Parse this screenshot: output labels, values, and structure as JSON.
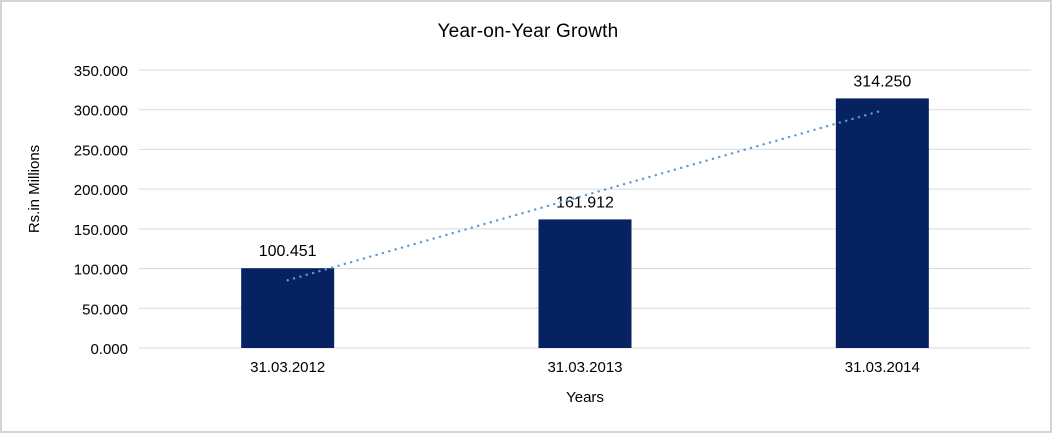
{
  "chart_data": {
    "type": "bar",
    "title": "Year-on-Year Growth",
    "xlabel": "Years",
    "ylabel": "Rs.in Millions",
    "categories": [
      "31.03.2012",
      "31.03.2013",
      "31.03.2014"
    ],
    "values": [
      100.451,
      161.912,
      314.25
    ],
    "value_labels": [
      "100.451",
      "161.912",
      "314.250"
    ],
    "ylim": [
      0,
      350
    ],
    "ytick_values": [
      0,
      50,
      100,
      150,
      200,
      250,
      300,
      350
    ],
    "ytick_labels": [
      "0.000",
      "50.000",
      "100.000",
      "150.000",
      "200.000",
      "250.000",
      "300.000",
      "350.000"
    ],
    "grid": "horizontal",
    "legend": "none",
    "trendline": {
      "type": "linear",
      "style": "dotted"
    },
    "colors": {
      "bar": "#062260",
      "trendline": "#5b9bd5",
      "gridline": "#d9d9d9",
      "text": "#000000",
      "frame_border": "#d4d4d4",
      "background": "#ffffff"
    }
  }
}
